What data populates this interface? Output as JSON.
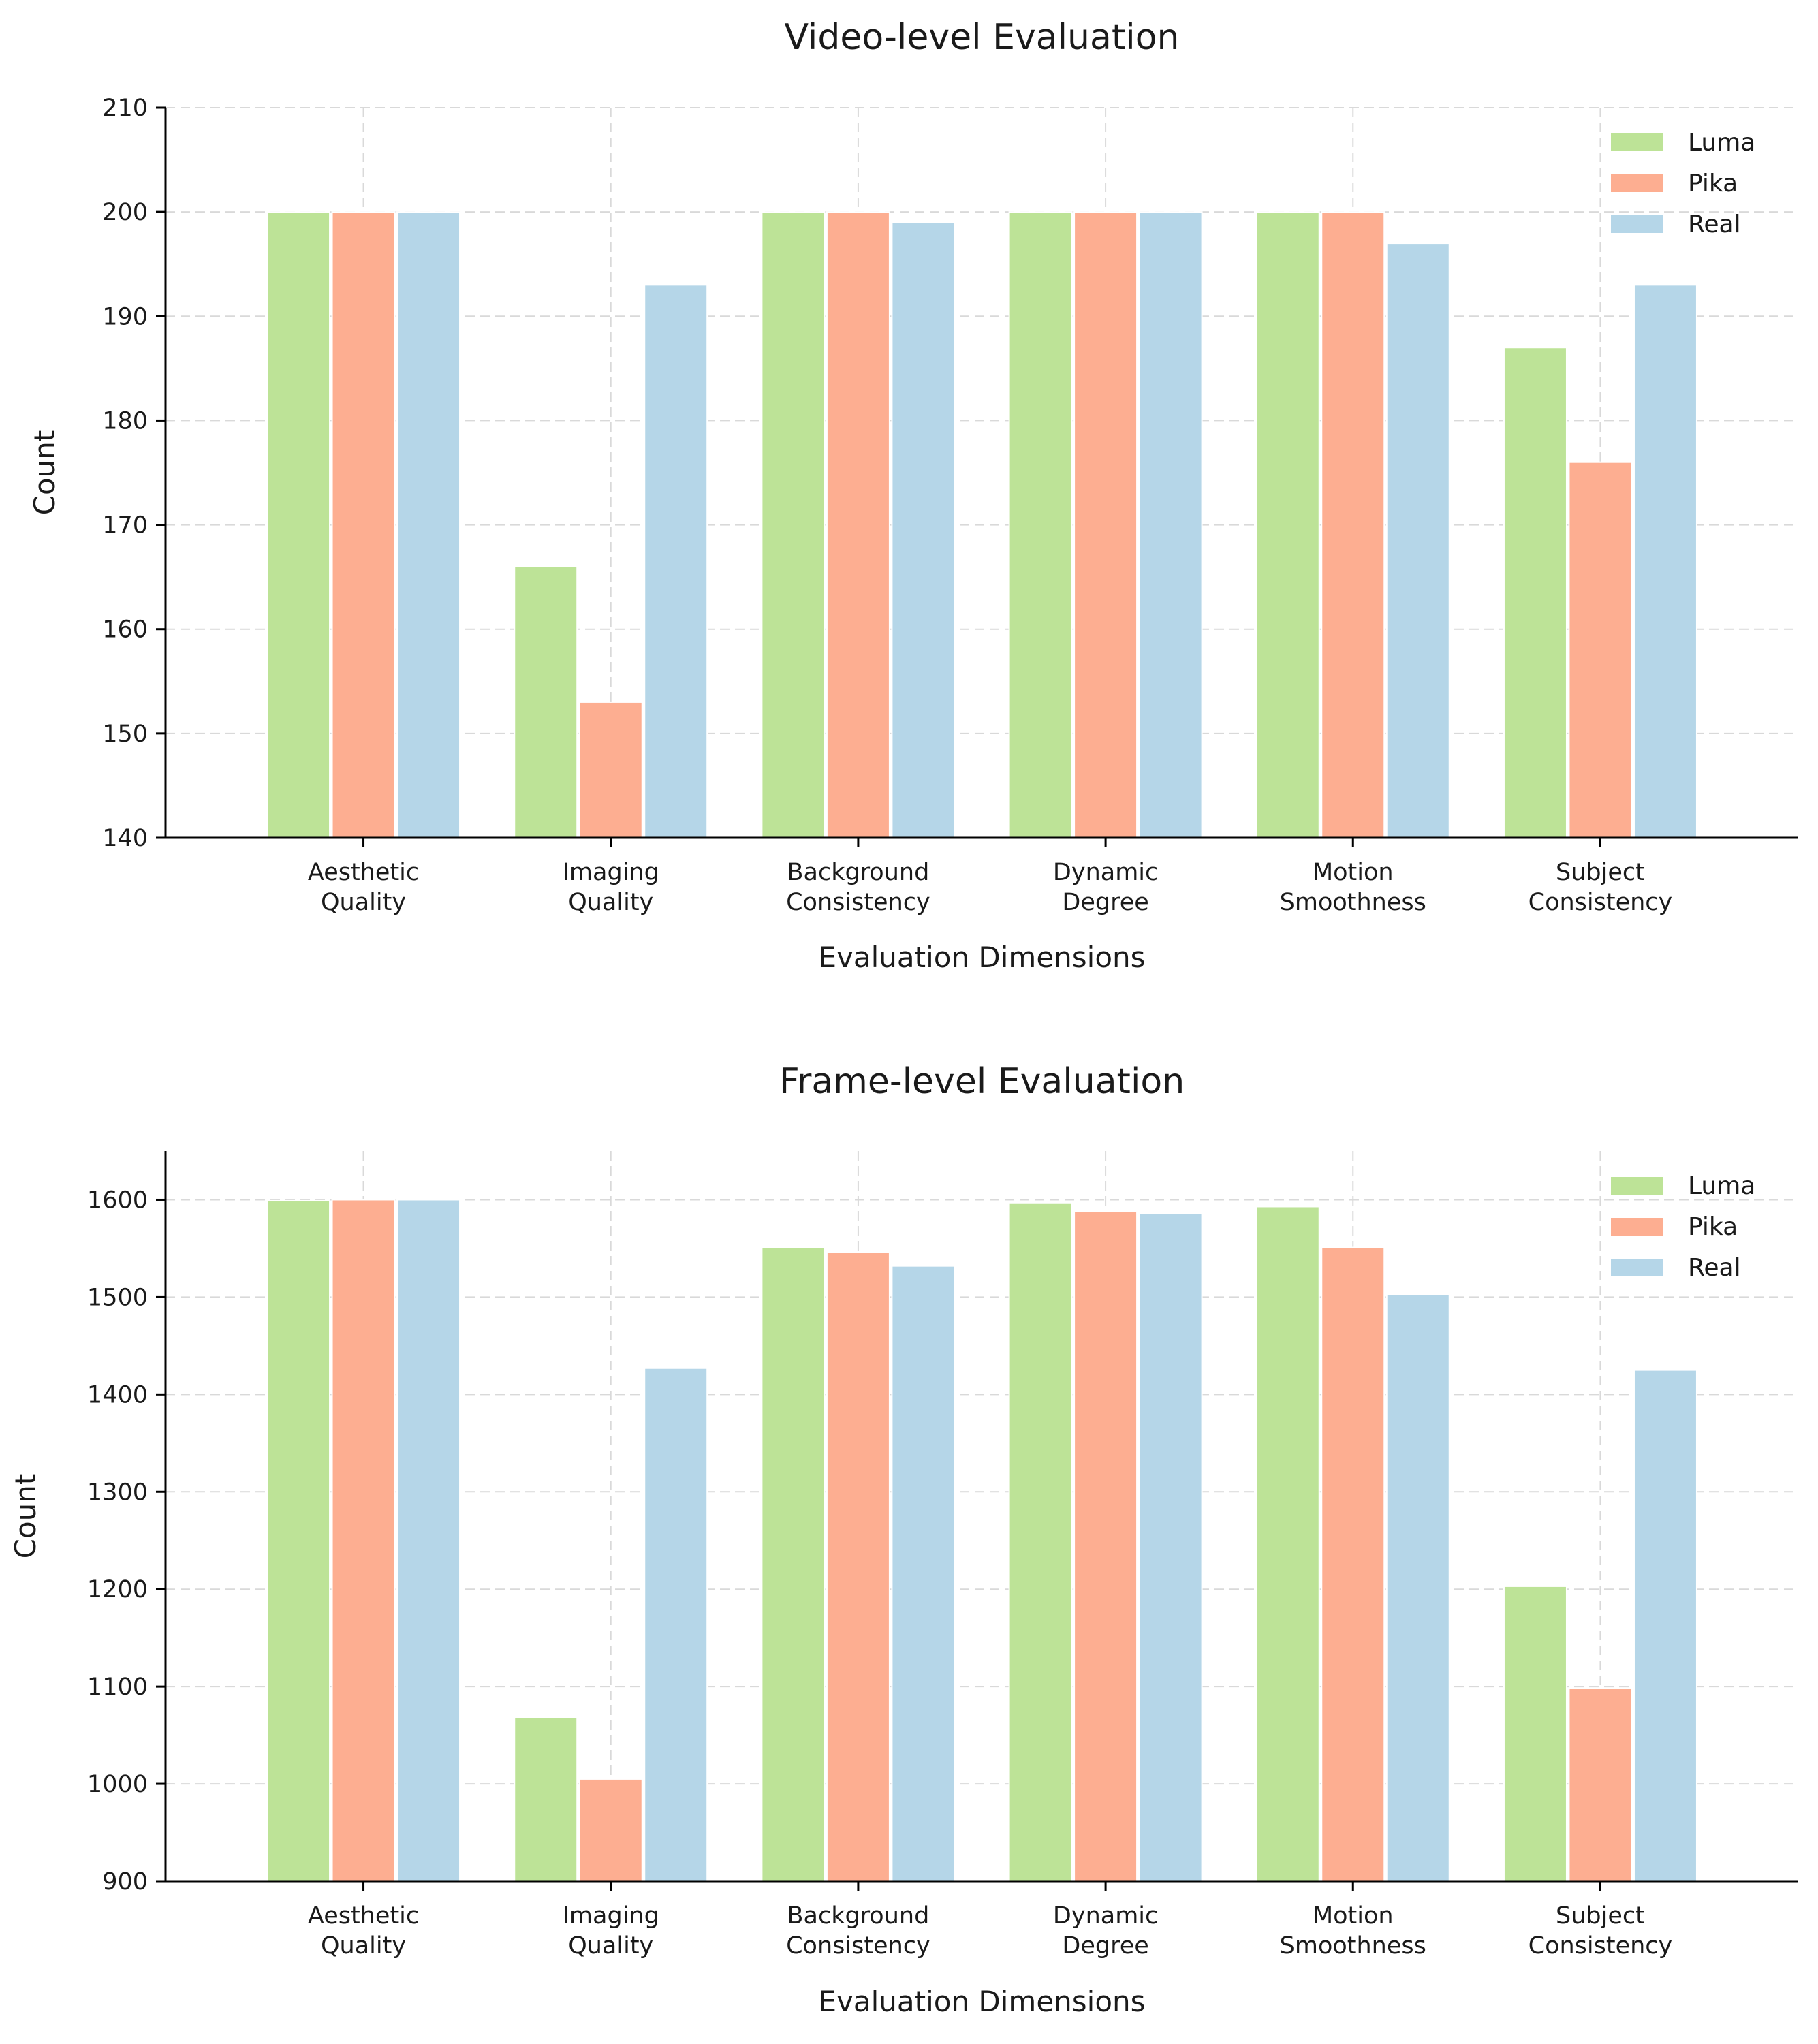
{
  "chart_data": [
    {
      "type": "bar",
      "title": "Video-level Evaluation",
      "xlabel": "Evaluation Dimensions",
      "ylabel": "Count",
      "ylim": [
        140,
        210
      ],
      "yticks": [
        140,
        150,
        160,
        170,
        180,
        190,
        200,
        210
      ],
      "grid": true,
      "legend_position": "top-right",
      "categories": [
        [
          "Aesthetic",
          "Quality"
        ],
        [
          "Imaging",
          "Quality"
        ],
        [
          "Background",
          "Consistency"
        ],
        [
          "Dynamic",
          "Degree"
        ],
        [
          "Motion",
          "Smoothness"
        ],
        [
          "Subject",
          "Consistency"
        ]
      ],
      "series": [
        {
          "name": "Luma",
          "color": "#bde397",
          "values": [
            200,
            166,
            200,
            200,
            200,
            187
          ]
        },
        {
          "name": "Pika",
          "color": "#fdae91",
          "values": [
            200,
            153,
            200,
            200,
            200,
            176
          ]
        },
        {
          "name": "Real",
          "color": "#b5d6e8",
          "values": [
            200,
            193,
            199,
            200,
            197,
            193
          ]
        }
      ]
    },
    {
      "type": "bar",
      "title": "Frame-level Evaluation",
      "xlabel": "Evaluation Dimensions",
      "ylabel": "Count",
      "ylim": [
        900,
        1650
      ],
      "yticks": [
        900,
        1000,
        1100,
        1200,
        1300,
        1400,
        1500,
        1600
      ],
      "grid": true,
      "legend_position": "top-right",
      "categories": [
        [
          "Aesthetic",
          "Quality"
        ],
        [
          "Imaging",
          "Quality"
        ],
        [
          "Background",
          "Consistency"
        ],
        [
          "Dynamic",
          "Degree"
        ],
        [
          "Motion",
          "Smoothness"
        ],
        [
          "Subject",
          "Consistency"
        ]
      ],
      "series": [
        {
          "name": "Luma",
          "color": "#bde397",
          "values": [
            1599,
            1068,
            1551,
            1597,
            1593,
            1203
          ]
        },
        {
          "name": "Pika",
          "color": "#fdae91",
          "values": [
            1600,
            1005,
            1546,
            1588,
            1551,
            1098
          ]
        },
        {
          "name": "Real",
          "color": "#b5d6e8",
          "values": [
            1600,
            1427,
            1532,
            1586,
            1503,
            1425
          ]
        }
      ]
    }
  ]
}
